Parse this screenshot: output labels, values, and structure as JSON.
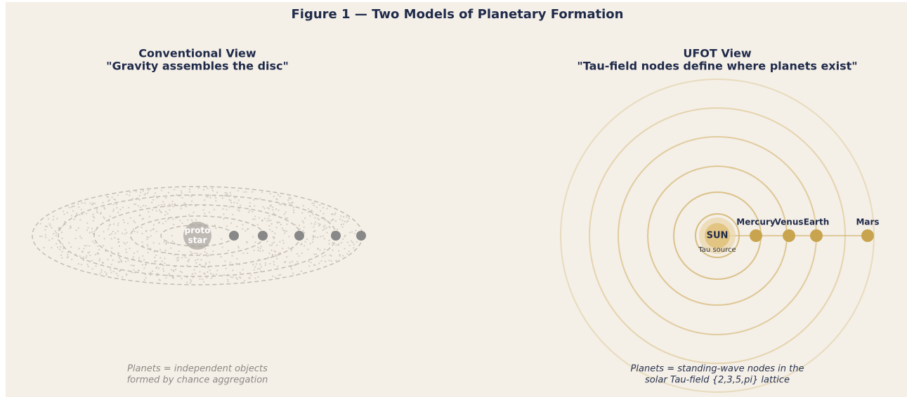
{
  "title": "Figure 1 — Two Models of Planetary Formation",
  "left": {
    "heading": [
      "Conventional View",
      "\"Gravity assembles the disc\""
    ],
    "star": [
      "proto",
      "star"
    ],
    "caption": [
      "Planets = independent objects",
      "formed by chance aggregation"
    ]
  },
  "right": {
    "heading": [
      "UFOT View",
      "\"Tau-field nodes define where planets exist\""
    ],
    "sun": "SUN",
    "sun_note": "Tau source",
    "planets": [
      "Mercury",
      "Venus",
      "Earth",
      "Mars"
    ],
    "caption": [
      "Planets = standing-wave nodes in the",
      "solar Tau-field {2,3,5,pi} lattice"
    ]
  }
}
